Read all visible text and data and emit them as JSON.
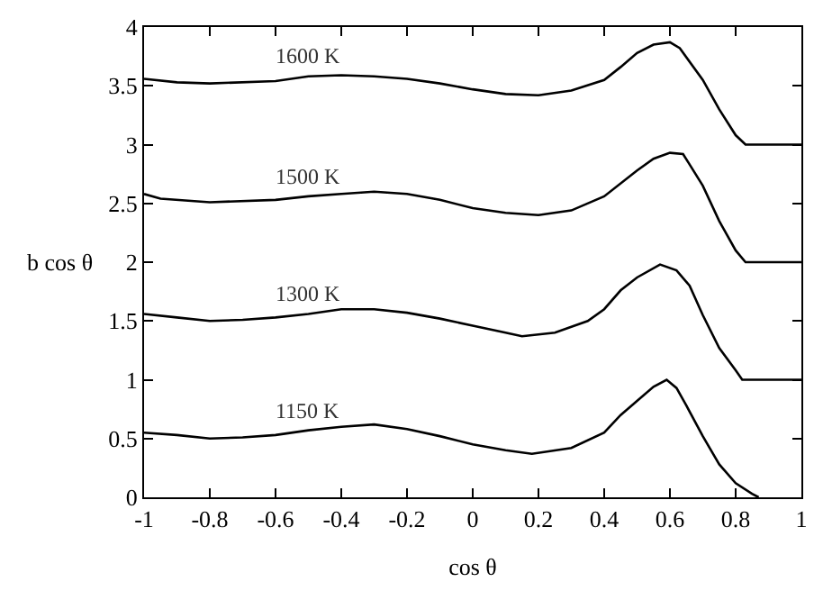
{
  "chart_data": {
    "type": "line",
    "xlabel": "cos θ",
    "ylabel": "b cos θ",
    "xlim": [
      -1,
      1
    ],
    "ylim": [
      0,
      4
    ],
    "xticks": [
      -1,
      -0.8,
      -0.6,
      -0.4,
      -0.2,
      0,
      0.2,
      0.4,
      0.6,
      0.8,
      1
    ],
    "yticks": [
      0,
      0.5,
      1,
      1.5,
      2,
      2.5,
      3,
      3.5,
      4
    ],
    "marker": "none",
    "line_style": "solid",
    "series": [
      {
        "name": "1600 K",
        "color": "#000000",
        "x": [
          -1,
          -0.9,
          -0.8,
          -0.6,
          -0.5,
          -0.4,
          -0.3,
          -0.2,
          -0.1,
          0,
          0.1,
          0.2,
          0.3,
          0.4,
          0.45,
          0.5,
          0.55,
          0.6,
          0.63,
          0.7,
          0.75,
          0.8,
          0.83,
          1
        ],
        "values": [
          3.56,
          3.53,
          3.52,
          3.54,
          3.58,
          3.59,
          3.58,
          3.56,
          3.52,
          3.47,
          3.43,
          3.42,
          3.46,
          3.55,
          3.66,
          3.78,
          3.85,
          3.87,
          3.82,
          3.55,
          3.3,
          3.08,
          3.0,
          3.0
        ]
      },
      {
        "name": "1500 K",
        "color": "#000000",
        "x": [
          -1,
          -0.95,
          -0.8,
          -0.6,
          -0.5,
          -0.4,
          -0.3,
          -0.2,
          -0.1,
          0,
          0.1,
          0.2,
          0.3,
          0.4,
          0.5,
          0.55,
          0.6,
          0.64,
          0.7,
          0.75,
          0.8,
          0.83,
          1
        ],
        "values": [
          2.58,
          2.54,
          2.51,
          2.53,
          2.56,
          2.58,
          2.6,
          2.58,
          2.53,
          2.46,
          2.42,
          2.4,
          2.44,
          2.56,
          2.78,
          2.88,
          2.93,
          2.92,
          2.65,
          2.35,
          2.1,
          2.0,
          2.0
        ]
      },
      {
        "name": "1300 K",
        "color": "#000000",
        "x": [
          -1,
          -0.9,
          -0.8,
          -0.7,
          -0.6,
          -0.5,
          -0.4,
          -0.3,
          -0.2,
          -0.1,
          0,
          0.1,
          0.15,
          0.25,
          0.35,
          0.4,
          0.45,
          0.5,
          0.57,
          0.62,
          0.66,
          0.7,
          0.75,
          0.8,
          0.82,
          1
        ],
        "values": [
          1.56,
          1.53,
          1.5,
          1.51,
          1.53,
          1.56,
          1.6,
          1.6,
          1.57,
          1.52,
          1.46,
          1.4,
          1.37,
          1.4,
          1.5,
          1.6,
          1.76,
          1.87,
          1.98,
          1.93,
          1.8,
          1.55,
          1.27,
          1.08,
          1.0,
          1.0
        ]
      },
      {
        "name": "1150 K",
        "color": "#000000",
        "x": [
          -1,
          -0.9,
          -0.8,
          -0.7,
          -0.6,
          -0.5,
          -0.4,
          -0.3,
          -0.2,
          -0.1,
          0,
          0.1,
          0.18,
          0.3,
          0.4,
          0.45,
          0.5,
          0.55,
          0.59,
          0.62,
          0.65,
          0.7,
          0.75,
          0.8,
          0.85,
          0.87
        ],
        "values": [
          0.55,
          0.53,
          0.5,
          0.51,
          0.53,
          0.57,
          0.6,
          0.62,
          0.58,
          0.52,
          0.45,
          0.4,
          0.37,
          0.42,
          0.55,
          0.7,
          0.82,
          0.94,
          1.0,
          0.93,
          0.78,
          0.52,
          0.28,
          0.12,
          0.03,
          0.0
        ]
      }
    ]
  }
}
